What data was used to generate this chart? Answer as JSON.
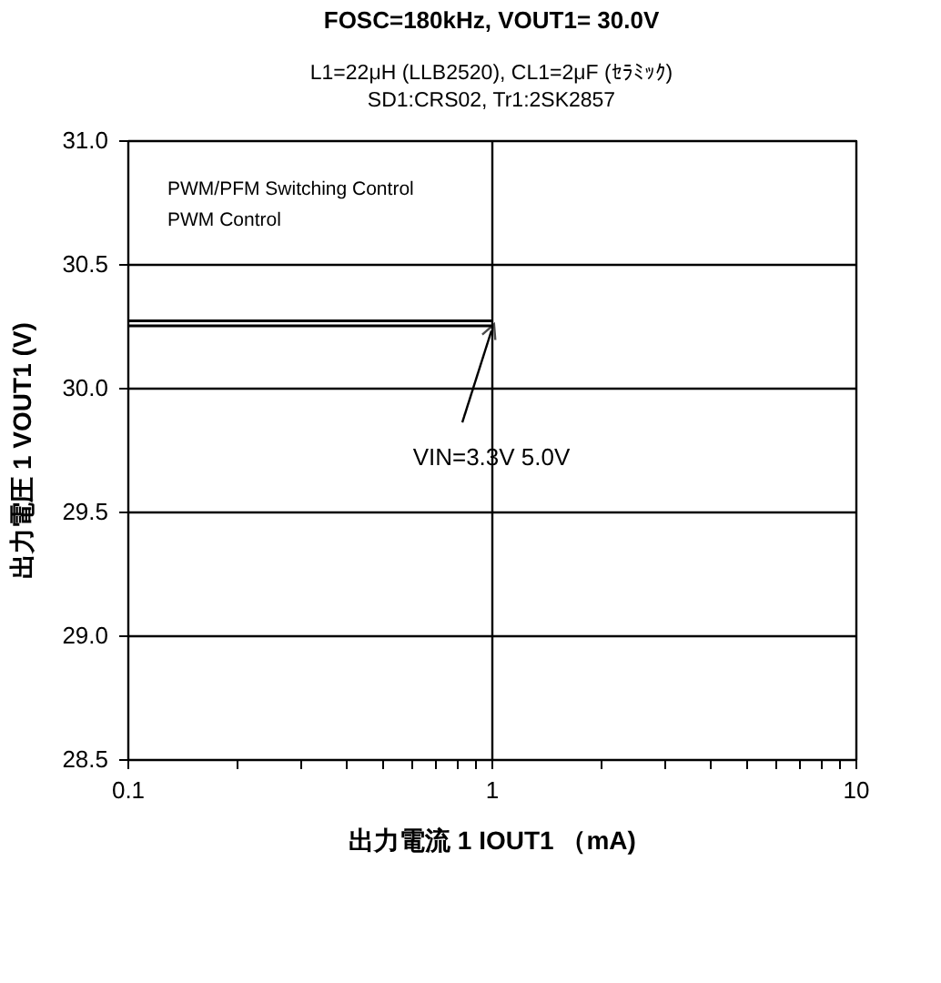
{
  "chart_data": {
    "type": "line",
    "title": "FOSC=180kHz, VOUT1= 30.0V",
    "subtitle": [
      "L1=22μH (LLB2520), CL1=2μF (ｾﾗﾐｯｸ)",
      "SD1:CRS02, Tr1:2SK2857"
    ],
    "xlabel": "出力電流 1  IOUT1 （mA)",
    "ylabel": "出力電圧 1  VOUT1  (V)",
    "x": [
      0.1,
      1.0
    ],
    "series": [
      {
        "color": "#000000",
        "values": [
          30.25,
          30.25
        ]
      },
      {
        "color": "#000000",
        "values": [
          30.27,
          30.27
        ]
      }
    ],
    "annotations": [
      "PWM/PFM Switching Control",
      "PWM  Control",
      {
        "text": "VIN=3.3V 5.0V",
        "x": 1.0,
        "y": 30.26
      }
    ],
    "log": "x",
    "xlim": [
      0.1,
      10
    ],
    "ylim": [
      28.5,
      31.0
    ],
    "xticks": [
      0.1,
      {
        "value": 0.2,
        "label": null
      },
      {
        "value": 0.3,
        "label": null
      },
      {
        "value": 0.4,
        "label": null
      },
      {
        "value": 0.5,
        "label": null
      },
      {
        "value": 0.6,
        "label": null
      },
      {
        "value": 0.7,
        "label": null
      },
      {
        "value": 0.8,
        "label": null
      },
      {
        "value": 0.9,
        "label": null
      },
      1,
      {
        "value": 2,
        "label": null
      },
      {
        "value": 3,
        "label": null
      },
      {
        "value": 4,
        "label": null
      },
      {
        "value": 5,
        "label": null
      },
      {
        "value": 6,
        "label": null
      },
      {
        "value": 7,
        "label": null
      },
      {
        "value": 8,
        "label": null
      },
      {
        "value": 9,
        "label": null
      },
      10
    ],
    "yticks": [
      28.5,
      {
        "value": 29,
        "label": "29.0"
      },
      29.5,
      {
        "value": 30,
        "label": "30.0"
      },
      30.5,
      {
        "value": 31,
        "label": "31.0"
      }
    ],
    "grid": true,
    "marker": "none",
    "line_style": "solid"
  }
}
